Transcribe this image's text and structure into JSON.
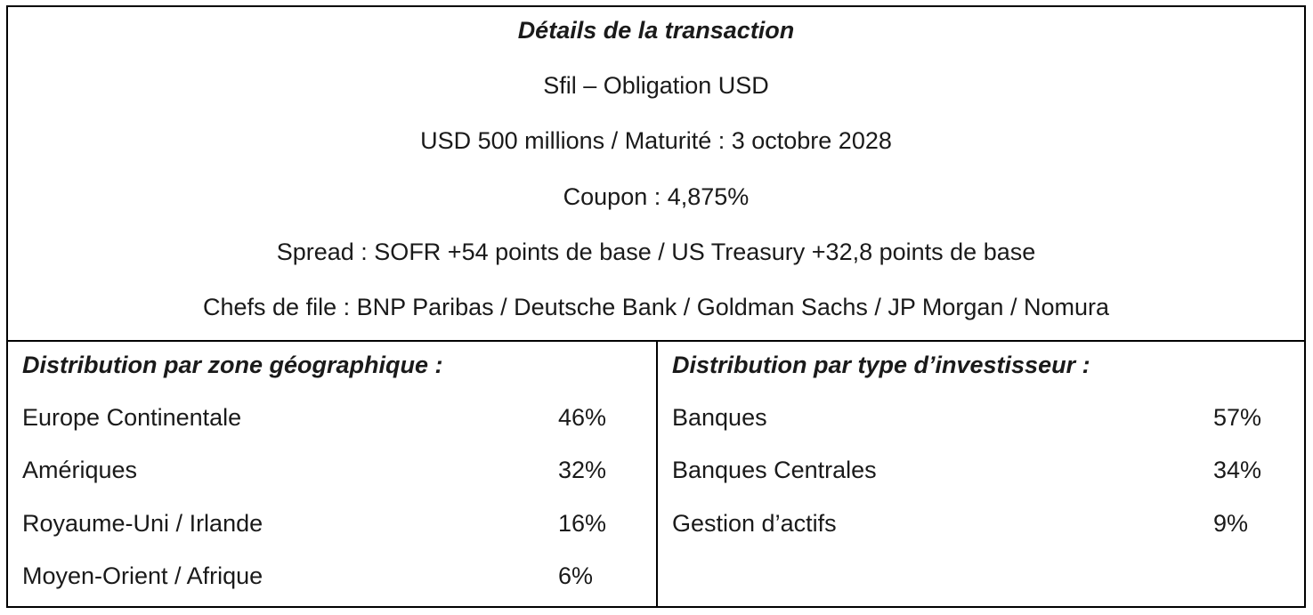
{
  "transaction": {
    "title": "Détails de la transaction",
    "lines": [
      "Sfil – Obligation USD",
      "USD 500 millions / Maturité : 3 octobre 2028",
      "Coupon : 4,875%",
      "Spread : SOFR +54 points de base / US Treasury +32,8 points de base",
      "Chefs de file : BNP Paribas / Deutsche Bank / Goldman Sachs / JP Morgan / Nomura"
    ]
  },
  "geo_distribution": {
    "title": "Distribution par zone géographique :",
    "rows": [
      {
        "label": "Europe Continentale",
        "value": "46%"
      },
      {
        "label": "Amériques",
        "value": "32%"
      },
      {
        "label": "Royaume-Uni / Irlande",
        "value": "16%"
      },
      {
        "label": "Moyen-Orient / Afrique",
        "value": "6%"
      }
    ]
  },
  "investor_distribution": {
    "title": "Distribution par type d’investisseur :",
    "rows": [
      {
        "label": "Banques",
        "value": "57%"
      },
      {
        "label": "Banques Centrales",
        "value": "34%"
      },
      {
        "label": "Gestion d’actifs",
        "value": "9%"
      }
    ]
  }
}
